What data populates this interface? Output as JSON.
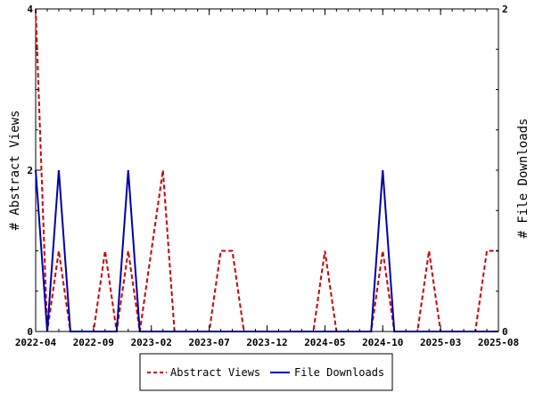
{
  "chart_data": {
    "type": "line",
    "title": "",
    "x_tick_labels": [
      "2022-04",
      "2022-09",
      "2023-02",
      "2023-07",
      "2023-12",
      "2024-05",
      "2024-10",
      "2025-03",
      "2025-08"
    ],
    "x_range": [
      "2022-04-01",
      "2025-08-01"
    ],
    "left_axis": {
      "label": "# Abstract Views",
      "range": [
        0,
        4
      ],
      "ticks": [
        "0",
        "2",
        "4"
      ]
    },
    "right_axis": {
      "label": "# File Downloads",
      "range": [
        0,
        2
      ],
      "ticks": [
        "0",
        "2"
      ]
    },
    "grid": false,
    "legend": {
      "placement": "bottom-center"
    },
    "series": [
      {
        "name": "Abstract Views",
        "axis": "left",
        "color": "#cc0000",
        "style": "dashed",
        "points": [
          [
            "2022-04-01",
            4
          ],
          [
            "2022-05-01",
            0
          ],
          [
            "2022-06-01",
            1
          ],
          [
            "2022-07-01",
            0
          ],
          [
            "2022-08-01",
            0
          ],
          [
            "2022-09-01",
            0
          ],
          [
            "2022-10-01",
            1
          ],
          [
            "2022-11-01",
            0
          ],
          [
            "2022-12-01",
            1
          ],
          [
            "2023-01-01",
            0
          ],
          [
            "2023-02-01",
            1
          ],
          [
            "2023-03-01",
            2
          ],
          [
            "2023-04-01",
            0
          ],
          [
            "2023-05-01",
            0
          ],
          [
            "2023-06-01",
            0
          ],
          [
            "2023-07-01",
            0
          ],
          [
            "2023-08-01",
            1
          ],
          [
            "2023-09-01",
            1
          ],
          [
            "2023-10-01",
            0
          ],
          [
            "2023-11-01",
            0
          ],
          [
            "2023-12-01",
            0
          ],
          [
            "2024-01-01",
            0
          ],
          [
            "2024-02-01",
            0
          ],
          [
            "2024-03-01",
            0
          ],
          [
            "2024-04-01",
            0
          ],
          [
            "2024-05-01",
            1
          ],
          [
            "2024-06-01",
            0
          ],
          [
            "2024-07-01",
            0
          ],
          [
            "2024-08-01",
            0
          ],
          [
            "2024-09-01",
            0
          ],
          [
            "2024-10-01",
            1
          ],
          [
            "2024-11-01",
            0
          ],
          [
            "2024-12-01",
            0
          ],
          [
            "2025-01-01",
            0
          ],
          [
            "2025-02-01",
            1
          ],
          [
            "2025-03-01",
            0
          ],
          [
            "2025-04-01",
            0
          ],
          [
            "2025-05-01",
            0
          ],
          [
            "2025-06-01",
            0
          ],
          [
            "2025-07-01",
            1
          ],
          [
            "2025-08-01",
            1
          ]
        ]
      },
      {
        "name": "File Downloads",
        "axis": "right",
        "color": "#0000aa",
        "style": "solid",
        "points": [
          [
            "2022-04-01",
            1
          ],
          [
            "2022-05-01",
            0
          ],
          [
            "2022-06-01",
            1
          ],
          [
            "2022-07-01",
            0
          ],
          [
            "2022-08-01",
            0
          ],
          [
            "2022-09-01",
            0
          ],
          [
            "2022-10-01",
            0
          ],
          [
            "2022-11-01",
            0
          ],
          [
            "2022-12-01",
            1
          ],
          [
            "2023-01-01",
            0
          ],
          [
            "2023-02-01",
            0
          ],
          [
            "2023-03-01",
            0
          ],
          [
            "2023-04-01",
            0
          ],
          [
            "2023-05-01",
            0
          ],
          [
            "2023-06-01",
            0
          ],
          [
            "2023-07-01",
            0
          ],
          [
            "2023-08-01",
            0
          ],
          [
            "2023-09-01",
            0
          ],
          [
            "2023-10-01",
            0
          ],
          [
            "2023-11-01",
            0
          ],
          [
            "2023-12-01",
            0
          ],
          [
            "2024-01-01",
            0
          ],
          [
            "2024-02-01",
            0
          ],
          [
            "2024-03-01",
            0
          ],
          [
            "2024-04-01",
            0
          ],
          [
            "2024-05-01",
            0
          ],
          [
            "2024-06-01",
            0
          ],
          [
            "2024-07-01",
            0
          ],
          [
            "2024-08-01",
            0
          ],
          [
            "2024-09-01",
            0
          ],
          [
            "2024-10-01",
            1
          ],
          [
            "2024-11-01",
            0
          ],
          [
            "2024-12-01",
            0
          ],
          [
            "2025-01-01",
            0
          ],
          [
            "2025-02-01",
            0
          ],
          [
            "2025-03-01",
            0
          ],
          [
            "2025-04-01",
            0
          ],
          [
            "2025-05-01",
            0
          ],
          [
            "2025-06-01",
            0
          ],
          [
            "2025-07-01",
            0
          ],
          [
            "2025-08-01",
            0
          ]
        ]
      }
    ]
  }
}
